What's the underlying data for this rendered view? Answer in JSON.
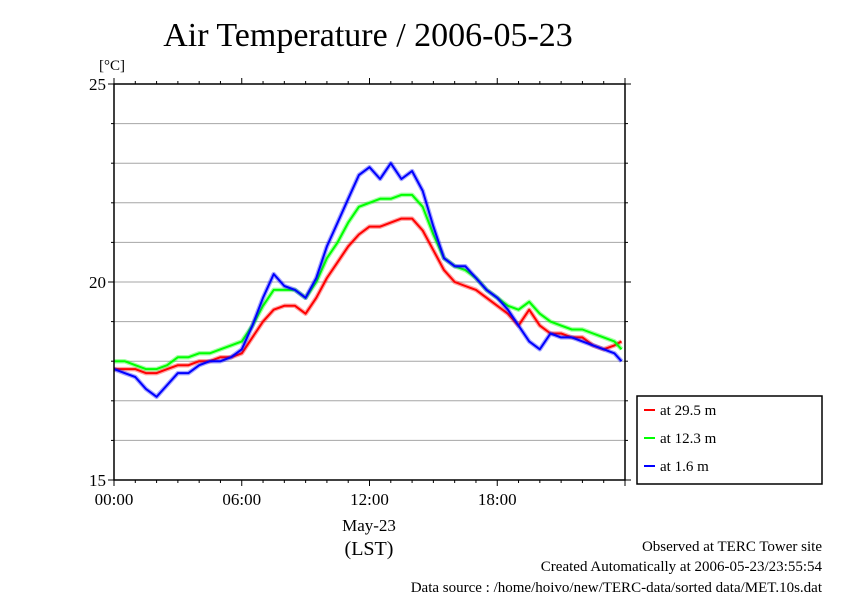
{
  "chart_data": {
    "type": "line",
    "title": "Air Temperature / 2006-05-23",
    "y_unit": "[°C]",
    "ylim": [
      15,
      25
    ],
    "y_ticks": [
      "15",
      "20",
      "25"
    ],
    "xlim": [
      "00:00",
      "24:00"
    ],
    "x_ticks": [
      "00:00",
      "06:00",
      "12:00",
      "18:00"
    ],
    "x_date_label": "May-23",
    "x_timezone_label": "(LST)",
    "grid": "horizontal",
    "legend_position": "right, below plot area",
    "series": [
      {
        "name": "at 29.5 m",
        "color": "#ff0000",
        "x": [
          "00:00",
          "00:30",
          "01:00",
          "01:30",
          "02:00",
          "02:30",
          "03:00",
          "03:30",
          "04:00",
          "04:30",
          "05:00",
          "05:30",
          "06:00",
          "06:30",
          "07:00",
          "07:30",
          "08:00",
          "08:30",
          "09:00",
          "09:30",
          "10:00",
          "10:30",
          "11:00",
          "11:30",
          "12:00",
          "12:30",
          "13:00",
          "13:30",
          "14:00",
          "14:30",
          "15:00",
          "15:30",
          "16:00",
          "16:30",
          "17:00",
          "17:30",
          "18:00",
          "18:30",
          "19:00",
          "19:30",
          "20:00",
          "20:30",
          "21:00",
          "21:30",
          "22:00",
          "22:30",
          "23:00",
          "23:30",
          "23:50"
        ],
        "values": [
          17.8,
          17.8,
          17.8,
          17.7,
          17.7,
          17.8,
          17.9,
          17.9,
          18.0,
          18.0,
          18.1,
          18.1,
          18.2,
          18.6,
          19.0,
          19.3,
          19.4,
          19.4,
          19.2,
          19.6,
          20.1,
          20.5,
          20.9,
          21.2,
          21.4,
          21.4,
          21.5,
          21.6,
          21.6,
          21.3,
          20.8,
          20.3,
          20.0,
          19.9,
          19.8,
          19.6,
          19.4,
          19.2,
          18.9,
          19.3,
          18.9,
          18.7,
          18.7,
          18.6,
          18.6,
          18.4,
          18.3,
          18.4,
          18.5
        ]
      },
      {
        "name": "at 12.3 m",
        "color": "#00ff00",
        "x": [
          "00:00",
          "00:30",
          "01:00",
          "01:30",
          "02:00",
          "02:30",
          "03:00",
          "03:30",
          "04:00",
          "04:30",
          "05:00",
          "05:30",
          "06:00",
          "06:30",
          "07:00",
          "07:30",
          "08:00",
          "08:30",
          "09:00",
          "09:30",
          "10:00",
          "10:30",
          "11:00",
          "11:30",
          "12:00",
          "12:30",
          "13:00",
          "13:30",
          "14:00",
          "14:30",
          "15:00",
          "15:30",
          "16:00",
          "16:30",
          "17:00",
          "17:30",
          "18:00",
          "18:30",
          "19:00",
          "19:30",
          "20:00",
          "20:30",
          "21:00",
          "21:30",
          "22:00",
          "22:30",
          "23:00",
          "23:30",
          "23:50"
        ],
        "values": [
          18.0,
          18.0,
          17.9,
          17.8,
          17.8,
          17.9,
          18.1,
          18.1,
          18.2,
          18.2,
          18.3,
          18.4,
          18.5,
          18.9,
          19.4,
          19.8,
          19.8,
          19.8,
          19.6,
          20.0,
          20.6,
          21.0,
          21.5,
          21.9,
          22.0,
          22.1,
          22.1,
          22.2,
          22.2,
          21.9,
          21.2,
          20.6,
          20.4,
          20.3,
          20.1,
          19.8,
          19.6,
          19.4,
          19.3,
          19.5,
          19.2,
          19.0,
          18.9,
          18.8,
          18.8,
          18.7,
          18.6,
          18.5,
          18.3
        ]
      },
      {
        "name": "at 1.6 m",
        "color": "#0000ff",
        "x": [
          "00:00",
          "00:30",
          "01:00",
          "01:30",
          "02:00",
          "02:30",
          "03:00",
          "03:30",
          "04:00",
          "04:30",
          "05:00",
          "05:30",
          "06:00",
          "06:30",
          "07:00",
          "07:30",
          "08:00",
          "08:30",
          "09:00",
          "09:30",
          "10:00",
          "10:30",
          "11:00",
          "11:30",
          "12:00",
          "12:30",
          "13:00",
          "13:30",
          "14:00",
          "14:30",
          "15:00",
          "15:30",
          "16:00",
          "16:30",
          "17:00",
          "17:30",
          "18:00",
          "18:30",
          "19:00",
          "19:30",
          "20:00",
          "20:30",
          "21:00",
          "21:30",
          "22:00",
          "22:30",
          "23:00",
          "23:30",
          "23:50"
        ],
        "values": [
          17.8,
          17.7,
          17.6,
          17.3,
          17.1,
          17.4,
          17.7,
          17.7,
          17.9,
          18.0,
          18.0,
          18.1,
          18.3,
          18.9,
          19.6,
          20.2,
          19.9,
          19.8,
          19.6,
          20.1,
          20.9,
          21.5,
          22.1,
          22.7,
          22.9,
          22.6,
          23.0,
          22.6,
          22.8,
          22.3,
          21.4,
          20.6,
          20.4,
          20.4,
          20.1,
          19.8,
          19.6,
          19.3,
          18.9,
          18.5,
          18.3,
          18.7,
          18.6,
          18.6,
          18.5,
          18.4,
          18.3,
          18.2,
          18.0
        ]
      }
    ]
  },
  "footer": {
    "site": "Observed at TERC Tower site",
    "created": "Created Automatically at 2006-05-23/23:55:54",
    "source": "Data source : /home/hoivo/new/TERC-data/sorted  data/MET.10s.dat"
  }
}
